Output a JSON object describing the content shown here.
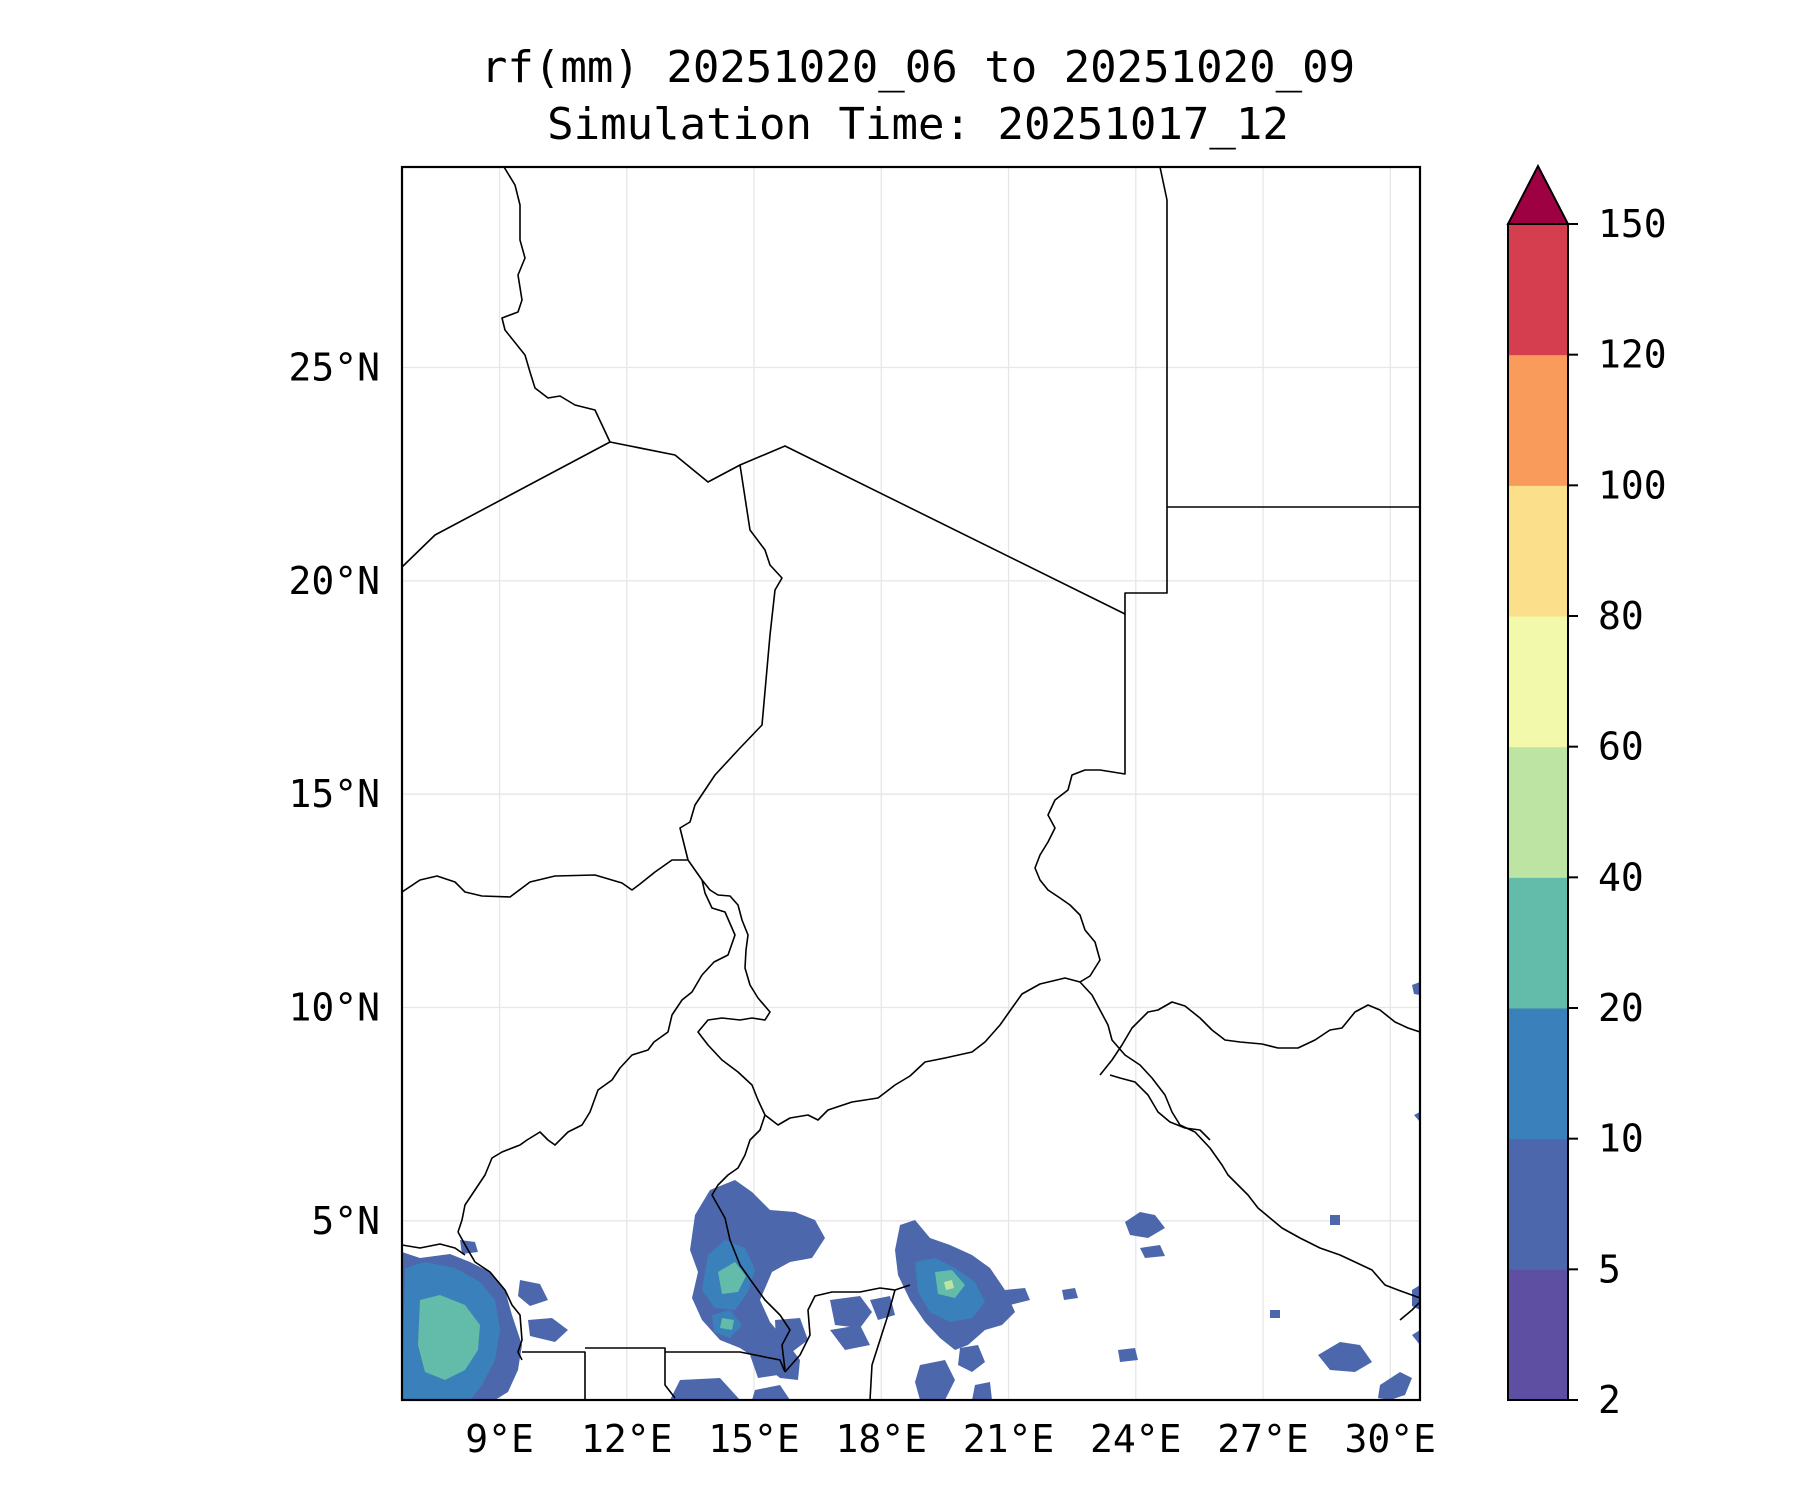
{
  "title": {
    "line1": "rf(mm) 20251020_06 to 20251020_09",
    "line2": "Simulation Time: 20251017_12"
  },
  "map": {
    "lon_range": [
      6.7,
      30.7
    ],
    "lat_range": [
      0.8,
      29.7
    ],
    "lon_ticks": [
      {
        "value": 9,
        "label": "9°E"
      },
      {
        "value": 12,
        "label": "12°E"
      },
      {
        "value": 15,
        "label": "15°E"
      },
      {
        "value": 18,
        "label": "18°E"
      },
      {
        "value": 21,
        "label": "21°E"
      },
      {
        "value": 24,
        "label": "24°E"
      },
      {
        "value": 27,
        "label": "27°E"
      },
      {
        "value": 30,
        "label": "30°E"
      }
    ],
    "lat_ticks": [
      {
        "value": 25,
        "label": "25°N"
      },
      {
        "value": 20,
        "label": "20°N"
      },
      {
        "value": 15,
        "label": "15°N"
      },
      {
        "value": 10,
        "label": "10°N"
      },
      {
        "value": 5,
        "label": "5°N"
      }
    ],
    "gridlines": true,
    "rain_regions": [
      "southwest coast (Cameroon/Gabon coast)",
      "Cameroon-Chad-CAR border near 15°E",
      "southwestern CAR near 20°E",
      "southern Sudan/CAR border",
      "northeastern DRC near 29°E"
    ]
  },
  "colorbar": {
    "levels": [
      2,
      5,
      10,
      20,
      40,
      60,
      80,
      100,
      120,
      150
    ],
    "colors": [
      "#5e4fa2",
      "#4d67ad",
      "#3a81bb",
      "#63bba9",
      "#bde4a2",
      "#f2f9ab",
      "#fcdf8a",
      "#f99b5b",
      "#d53e4f"
    ],
    "extend_color": "#9e0142",
    "labels": [
      "2",
      "5",
      "10",
      "20",
      "40",
      "60",
      "80",
      "100",
      "120",
      "150"
    ]
  }
}
